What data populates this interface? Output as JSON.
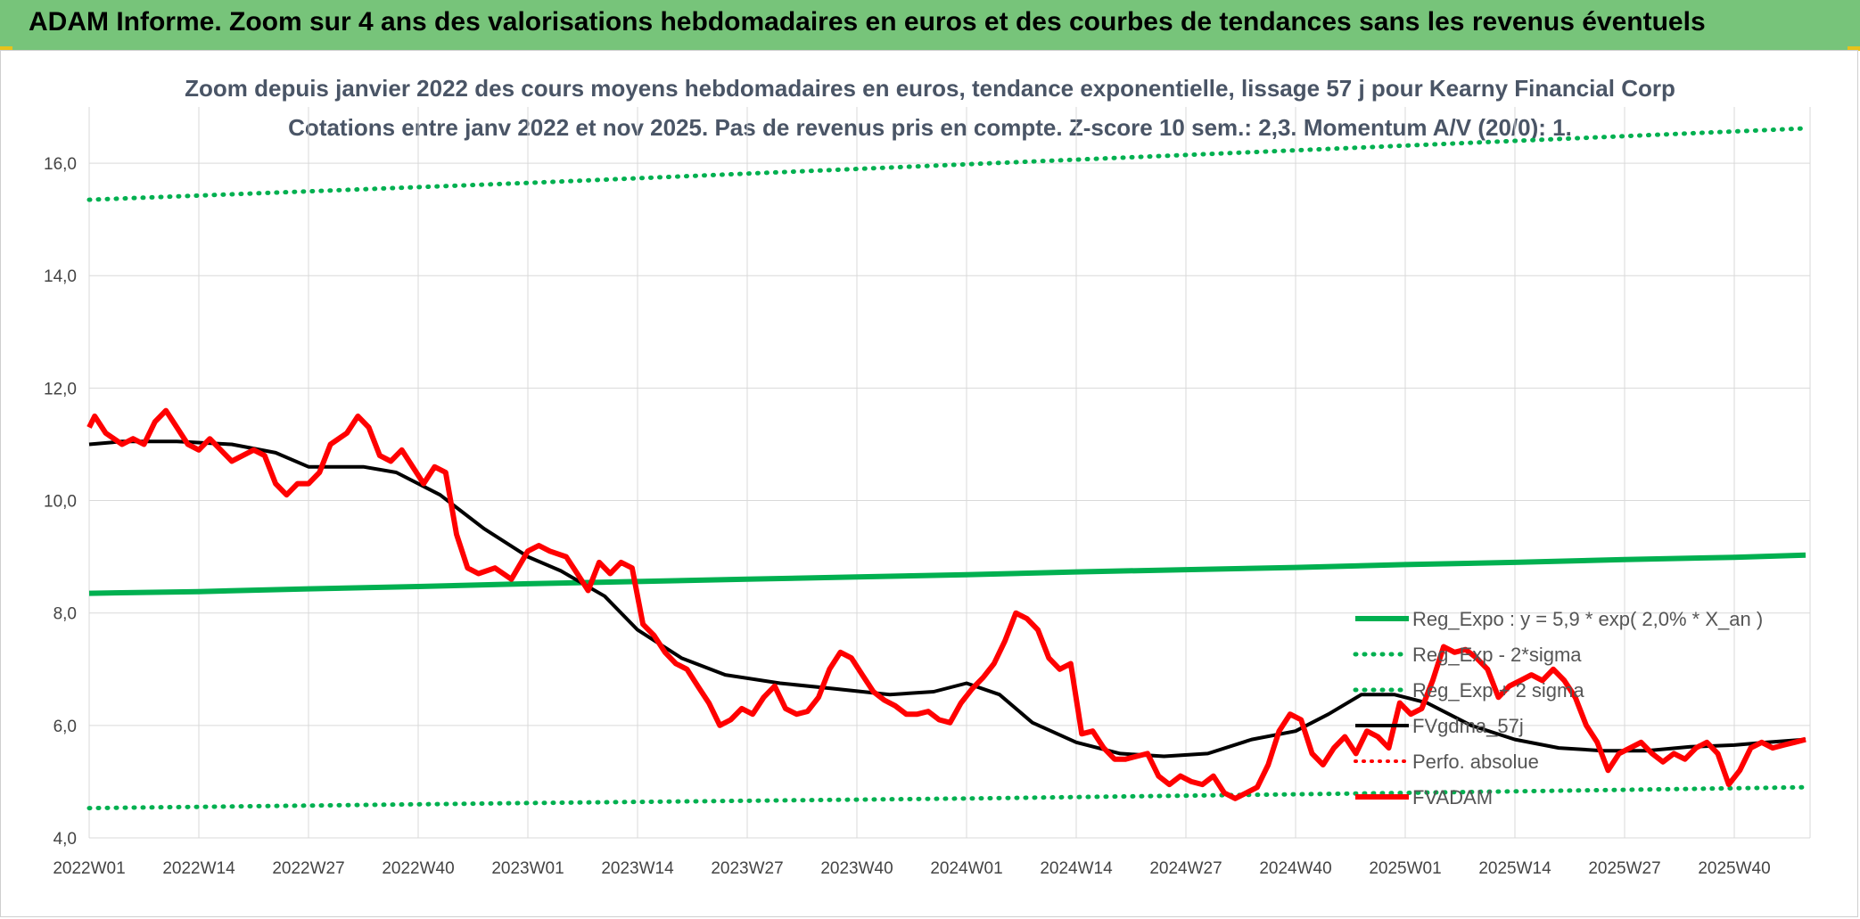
{
  "banner": {
    "title": "ADAM Informe. Zoom sur 4 ans des valorisations hebdomadaires en euros et des courbes de tendances sans les revenus éventuels"
  },
  "colors": {
    "banner": "#77c47a",
    "trend": "#00b050",
    "price": "#ff0000",
    "smooth": "#000000"
  },
  "chart_data": {
    "type": "line",
    "title": "Zoom depuis janvier 2022 des cours moyens hebdomadaires en euros, tendance exponentielle, lissage 57 j pour Kearny Financial Corp",
    "subtitle": "Cotations entre janv 2022 et nov 2025. Pas de revenus pris en compte. Z-score 10 sem.: 2,3. Momentum A/V (20/0): 1.",
    "x_categories": [
      "2022W01",
      "2022W14",
      "2022W27",
      "2022W40",
      "2023W01",
      "2023W14",
      "2023W27",
      "2023W40",
      "2024W01",
      "2024W14",
      "2024W27",
      "2024W40",
      "2025W01",
      "2025W14",
      "2025W27",
      "2025W40"
    ],
    "ylim": [
      4.0,
      17.0
    ],
    "y_ticks": [
      "4,0",
      "6,0",
      "8,0",
      "10,0",
      "12,0",
      "14,0",
      "16,0"
    ],
    "grid": true,
    "legend_position": "right",
    "series": [
      {
        "name": "Reg_Expo : y = 5,9 * exp( 2,0% *  X_an )",
        "style": "solid-green",
        "values": [
          [
            0,
            8.35
          ],
          [
            1,
            8.38
          ],
          [
            2,
            8.43
          ],
          [
            3,
            8.47
          ],
          [
            4,
            8.52
          ],
          [
            5,
            8.56
          ],
          [
            6,
            8.6
          ],
          [
            7,
            8.64
          ],
          [
            8,
            8.68
          ],
          [
            9,
            8.73
          ],
          [
            10,
            8.77
          ],
          [
            11,
            8.81
          ],
          [
            12,
            8.86
          ],
          [
            13,
            8.9
          ],
          [
            14,
            8.95
          ],
          [
            15,
            8.99
          ],
          [
            15.65,
            9.03
          ]
        ]
      },
      {
        "name": "Reg_Exp - 2*sigma",
        "style": "dotted-green",
        "values": [
          [
            0,
            4.53
          ],
          [
            4,
            4.62
          ],
          [
            8,
            4.7
          ],
          [
            12,
            4.8
          ],
          [
            15.65,
            4.9
          ]
        ]
      },
      {
        "name": "Reg_Exp + 2 sigma",
        "style": "dotted-green",
        "values": [
          [
            0,
            15.35
          ],
          [
            4,
            15.65
          ],
          [
            8,
            15.98
          ],
          [
            11.5,
            16.27
          ],
          [
            12.8,
            16.38
          ],
          [
            15.65,
            16.62
          ]
        ]
      },
      {
        "name": "FVgdma_57j",
        "style": "solid-black",
        "values": [
          [
            0,
            11.0
          ],
          [
            0.3,
            11.05
          ],
          [
            0.8,
            11.05
          ],
          [
            1.3,
            11.0
          ],
          [
            1.7,
            10.85
          ],
          [
            2.0,
            10.6
          ],
          [
            2.5,
            10.6
          ],
          [
            2.8,
            10.5
          ],
          [
            3.2,
            10.1
          ],
          [
            3.6,
            9.5
          ],
          [
            4.0,
            9.0
          ],
          [
            4.3,
            8.75
          ],
          [
            4.7,
            8.3
          ],
          [
            5.0,
            7.7
          ],
          [
            5.4,
            7.2
          ],
          [
            5.8,
            6.9
          ],
          [
            6.3,
            6.75
          ],
          [
            6.8,
            6.65
          ],
          [
            7.3,
            6.55
          ],
          [
            7.7,
            6.6
          ],
          [
            8.0,
            6.75
          ],
          [
            8.3,
            6.55
          ],
          [
            8.6,
            6.05
          ],
          [
            9.0,
            5.7
          ],
          [
            9.4,
            5.5
          ],
          [
            9.8,
            5.45
          ],
          [
            10.2,
            5.5
          ],
          [
            10.6,
            5.75
          ],
          [
            11.0,
            5.9
          ],
          [
            11.3,
            6.2
          ],
          [
            11.6,
            6.55
          ],
          [
            11.9,
            6.55
          ],
          [
            12.2,
            6.4
          ],
          [
            12.6,
            6.0
          ],
          [
            13.0,
            5.75
          ],
          [
            13.4,
            5.6
          ],
          [
            13.8,
            5.55
          ],
          [
            14.2,
            5.55
          ],
          [
            14.6,
            5.62
          ],
          [
            15.0,
            5.65
          ],
          [
            15.3,
            5.7
          ],
          [
            15.65,
            5.75
          ]
        ]
      },
      {
        "name": "Perfo. absolue",
        "style": "dotted-red",
        "values": []
      },
      {
        "name": "FVADAM",
        "style": "solid-red",
        "values": [
          [
            0,
            11.3
          ],
          [
            0.05,
            11.5
          ],
          [
            0.15,
            11.2
          ],
          [
            0.3,
            11.0
          ],
          [
            0.4,
            11.1
          ],
          [
            0.5,
            11.0
          ],
          [
            0.6,
            11.4
          ],
          [
            0.7,
            11.6
          ],
          [
            0.8,
            11.3
          ],
          [
            0.9,
            11.0
          ],
          [
            1.0,
            10.9
          ],
          [
            1.1,
            11.1
          ],
          [
            1.2,
            10.9
          ],
          [
            1.3,
            10.7
          ],
          [
            1.4,
            10.8
          ],
          [
            1.5,
            10.9
          ],
          [
            1.6,
            10.8
          ],
          [
            1.7,
            10.3
          ],
          [
            1.8,
            10.1
          ],
          [
            1.9,
            10.3
          ],
          [
            2.0,
            10.3
          ],
          [
            2.1,
            10.5
          ],
          [
            2.2,
            11.0
          ],
          [
            2.35,
            11.2
          ],
          [
            2.45,
            11.5
          ],
          [
            2.55,
            11.3
          ],
          [
            2.65,
            10.8
          ],
          [
            2.75,
            10.7
          ],
          [
            2.85,
            10.9
          ],
          [
            2.95,
            10.6
          ],
          [
            3.05,
            10.3
          ],
          [
            3.15,
            10.6
          ],
          [
            3.25,
            10.5
          ],
          [
            3.35,
            9.4
          ],
          [
            3.45,
            8.8
          ],
          [
            3.55,
            8.7
          ],
          [
            3.7,
            8.8
          ],
          [
            3.85,
            8.6
          ],
          [
            4.0,
            9.1
          ],
          [
            4.1,
            9.2
          ],
          [
            4.2,
            9.1
          ],
          [
            4.35,
            9.0
          ],
          [
            4.45,
            8.7
          ],
          [
            4.55,
            8.4
          ],
          [
            4.65,
            8.9
          ],
          [
            4.75,
            8.7
          ],
          [
            4.85,
            8.9
          ],
          [
            4.95,
            8.8
          ],
          [
            5.05,
            7.8
          ],
          [
            5.15,
            7.6
          ],
          [
            5.25,
            7.3
          ],
          [
            5.35,
            7.1
          ],
          [
            5.45,
            7.0
          ],
          [
            5.55,
            6.7
          ],
          [
            5.65,
            6.4
          ],
          [
            5.75,
            6.0
          ],
          [
            5.85,
            6.1
          ],
          [
            5.95,
            6.3
          ],
          [
            6.05,
            6.2
          ],
          [
            6.15,
            6.5
          ],
          [
            6.25,
            6.7
          ],
          [
            6.35,
            6.3
          ],
          [
            6.45,
            6.2
          ],
          [
            6.55,
            6.25
          ],
          [
            6.65,
            6.5
          ],
          [
            6.75,
            7.0
          ],
          [
            6.85,
            7.3
          ],
          [
            6.95,
            7.2
          ],
          [
            7.05,
            6.9
          ],
          [
            7.15,
            6.6
          ],
          [
            7.25,
            6.45
          ],
          [
            7.35,
            6.35
          ],
          [
            7.45,
            6.2
          ],
          [
            7.55,
            6.2
          ],
          [
            7.65,
            6.25
          ],
          [
            7.75,
            6.1
          ],
          [
            7.85,
            6.05
          ],
          [
            7.95,
            6.4
          ],
          [
            8.05,
            6.65
          ],
          [
            8.15,
            6.85
          ],
          [
            8.25,
            7.1
          ],
          [
            8.35,
            7.5
          ],
          [
            8.45,
            8.0
          ],
          [
            8.55,
            7.9
          ],
          [
            8.65,
            7.7
          ],
          [
            8.75,
            7.2
          ],
          [
            8.85,
            7.0
          ],
          [
            8.95,
            7.1
          ],
          [
            9.05,
            5.85
          ],
          [
            9.15,
            5.9
          ],
          [
            9.25,
            5.6
          ],
          [
            9.35,
            5.4
          ],
          [
            9.45,
            5.4
          ],
          [
            9.55,
            5.45
          ],
          [
            9.65,
            5.5
          ],
          [
            9.75,
            5.1
          ],
          [
            9.85,
            4.95
          ],
          [
            9.95,
            5.1
          ],
          [
            10.05,
            5.0
          ],
          [
            10.15,
            4.95
          ],
          [
            10.25,
            5.1
          ],
          [
            10.35,
            4.8
          ],
          [
            10.45,
            4.7
          ],
          [
            10.55,
            4.8
          ],
          [
            10.65,
            4.9
          ],
          [
            10.75,
            5.3
          ],
          [
            10.85,
            5.9
          ],
          [
            10.95,
            6.2
          ],
          [
            11.05,
            6.1
          ],
          [
            11.15,
            5.5
          ],
          [
            11.25,
            5.3
          ],
          [
            11.35,
            5.6
          ],
          [
            11.45,
            5.8
          ],
          [
            11.55,
            5.5
          ],
          [
            11.65,
            5.9
          ],
          [
            11.75,
            5.8
          ],
          [
            11.85,
            5.6
          ],
          [
            11.95,
            6.4
          ],
          [
            12.05,
            6.2
          ],
          [
            12.15,
            6.3
          ],
          [
            12.25,
            6.8
          ],
          [
            12.35,
            7.4
          ],
          [
            12.45,
            7.3
          ],
          [
            12.55,
            7.35
          ],
          [
            12.65,
            7.2
          ],
          [
            12.75,
            7.0
          ],
          [
            12.85,
            6.5
          ],
          [
            12.95,
            6.7
          ],
          [
            13.05,
            6.8
          ],
          [
            13.15,
            6.9
          ],
          [
            13.25,
            6.8
          ],
          [
            13.35,
            7.0
          ],
          [
            13.45,
            6.8
          ],
          [
            13.55,
            6.5
          ],
          [
            13.65,
            6.0
          ],
          [
            13.75,
            5.7
          ],
          [
            13.85,
            5.2
          ],
          [
            13.95,
            5.5
          ],
          [
            14.05,
            5.6
          ],
          [
            14.15,
            5.7
          ],
          [
            14.25,
            5.5
          ],
          [
            14.35,
            5.35
          ],
          [
            14.45,
            5.5
          ],
          [
            14.55,
            5.4
          ],
          [
            14.65,
            5.6
          ],
          [
            14.75,
            5.7
          ],
          [
            14.85,
            5.5
          ],
          [
            14.95,
            4.95
          ],
          [
            15.05,
            5.2
          ],
          [
            15.15,
            5.6
          ],
          [
            15.25,
            5.7
          ],
          [
            15.35,
            5.6
          ],
          [
            15.45,
            5.65
          ],
          [
            15.55,
            5.7
          ],
          [
            15.65,
            5.75
          ]
        ]
      }
    ]
  }
}
